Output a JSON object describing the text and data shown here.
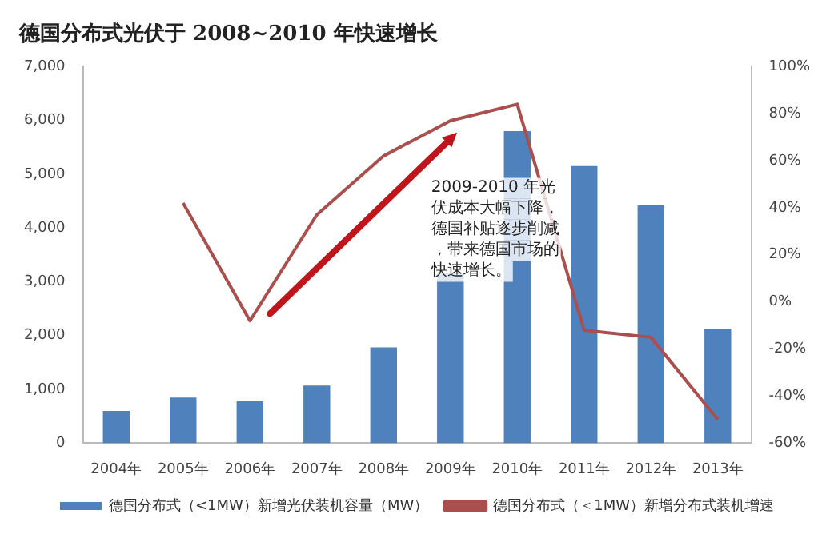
{
  "chart_data": {
    "type": "bar",
    "title": "德国分布式光伏于 2008~2010 年快速增长",
    "categories": [
      "2004年",
      "2005年",
      "2006年",
      "2007年",
      "2008年",
      "2009年",
      "2010年",
      "2011年",
      "2012年",
      "2013年"
    ],
    "series": [
      {
        "name": "德国分布式（<1MW）新增光伏装机容量（MW）",
        "color": "#4f81bd",
        "values": [
          600,
          850,
          780,
          1070,
          1780,
          3150,
          5800,
          5150,
          4420,
          2130
        ]
      },
      {
        "name": "德国分布式（＜1MW）新增分布式装机增速",
        "type": "line",
        "axis": "y2",
        "color": "#a9504f",
        "values": [
          null,
          42,
          -8,
          37,
          62,
          77,
          84,
          -12,
          -15,
          -50
        ]
      }
    ],
    "ylim": [
      0,
      7000
    ],
    "yticks": [
      0,
      {
        "value": 1000,
        "label": "1,000"
      },
      {
        "value": 2000,
        "label": "2,000"
      },
      {
        "value": 3000,
        "label": "3,000"
      },
      {
        "value": 4000,
        "label": "4,000"
      },
      {
        "value": 5000,
        "label": "5,000"
      },
      {
        "value": 6000,
        "label": "6,000"
      },
      {
        "value": 7000,
        "label": "7,000"
      }
    ],
    "y2lim": [
      -60,
      100
    ],
    "y2ticks": [
      {
        "value": -60,
        "label": "-60%"
      },
      {
        "value": -40,
        "label": "-40%"
      },
      {
        "value": -20,
        "label": "-20%"
      },
      {
        "value": 0,
        "label": "0%"
      },
      {
        "value": 20,
        "label": "20%"
      },
      {
        "value": 40,
        "label": "40%"
      },
      {
        "value": 60,
        "label": "60%"
      },
      {
        "value": 80,
        "label": "80%"
      },
      {
        "value": 100,
        "label": "100%"
      }
    ],
    "annotations": [
      "2009-2010 年光伏成本大幅下降，德国补贴逐步削减，带来德国市场的快速增长。"
    ],
    "grid": false,
    "legend": "bottom",
    "marker": "none",
    "line_style": "solid"
  }
}
